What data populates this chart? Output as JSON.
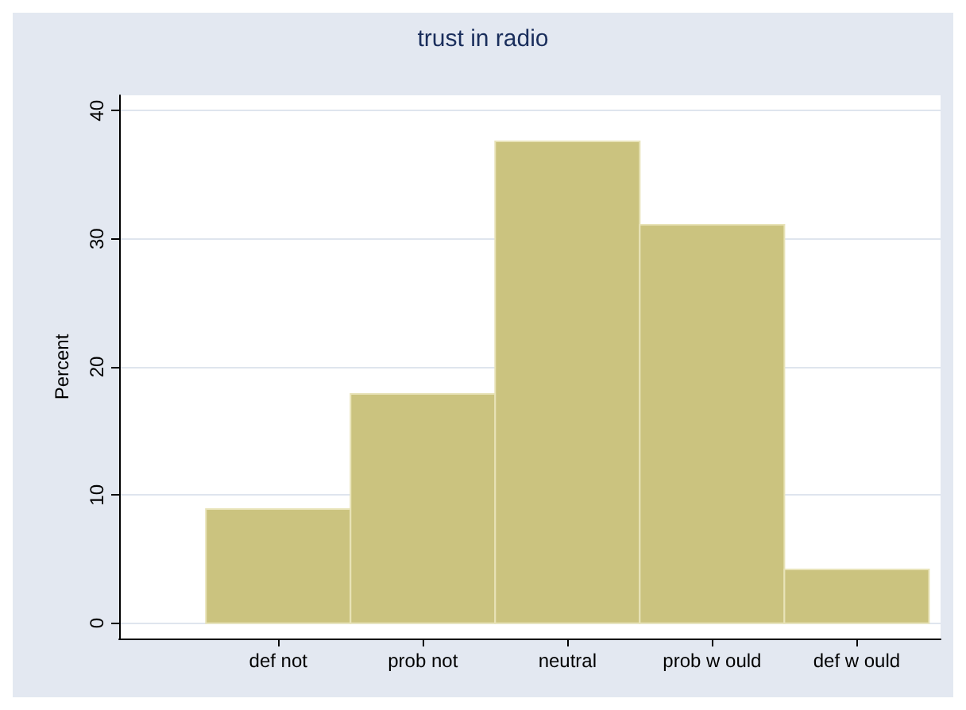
{
  "chart_data": {
    "type": "bar",
    "title": "trust in radio",
    "ylabel": "Percent",
    "categories": [
      "def not",
      "prob not",
      "neutral",
      "prob w ould",
      "def w ould"
    ],
    "values": [
      8.9,
      17.9,
      37.6,
      31.1,
      4.2
    ],
    "color": "#cbc37f",
    "ylim": [
      -1.2,
      41.2
    ],
    "yticks": [
      0,
      10,
      20,
      30,
      40
    ],
    "grid": "y"
  }
}
